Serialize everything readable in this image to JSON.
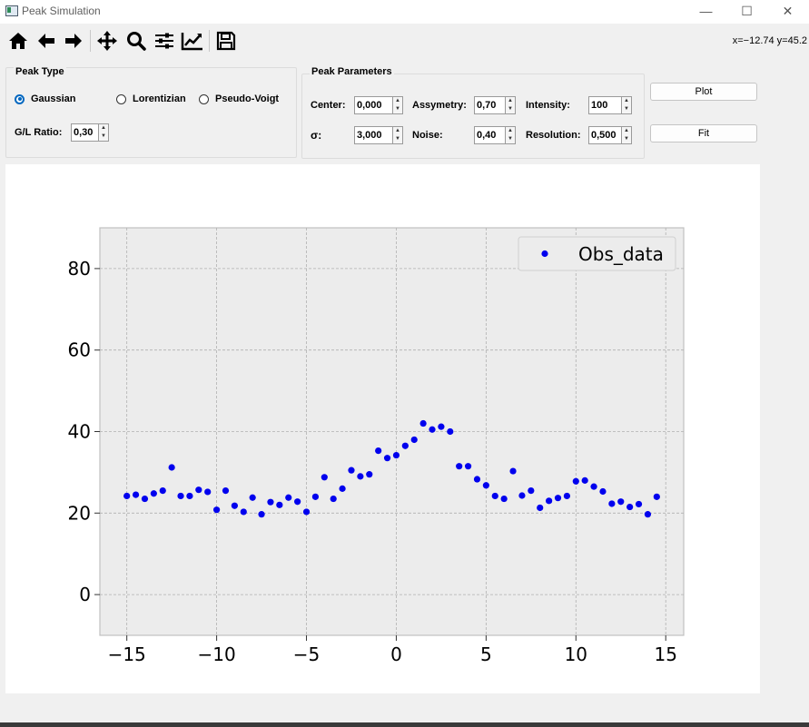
{
  "window": {
    "title": "Peak Simulation",
    "controls": {
      "minimize": "—",
      "maximize": "☐",
      "close": "✕"
    }
  },
  "toolbar": {
    "icons": [
      "home-icon",
      "back-arrow-icon",
      "forward-arrow-icon",
      "pan-icon",
      "zoom-icon",
      "subplots-icon",
      "customize-icon",
      "save-icon"
    ],
    "coords": "x=−12.74 y=45.2"
  },
  "peak_type": {
    "title": "Peak Type",
    "options": [
      {
        "label": "Gaussian",
        "selected": true
      },
      {
        "label": "Lorentizian",
        "selected": false
      },
      {
        "label": "Pseudo-Voigt",
        "selected": false
      }
    ],
    "gl_ratio": {
      "label": "G/L Ratio:",
      "value": "0,30"
    }
  },
  "peak_params": {
    "title": "Peak Parameters",
    "center": {
      "label": "Center:",
      "value": "0,000"
    },
    "asymmetry": {
      "label": "Assymetry:",
      "value": "0,70"
    },
    "intensity": {
      "label": "Intensity:",
      "value": "100"
    },
    "sigma": {
      "label": "σ:",
      "value": "3,000"
    },
    "noise": {
      "label": "Noise:",
      "value": "0,40"
    },
    "resolution": {
      "label": "Resolution:",
      "value": "0,500"
    }
  },
  "buttons": {
    "plot": "Plot",
    "fit": "Fit"
  },
  "colors": {
    "marker": "#0000ee",
    "axes_bg": "#ececec",
    "accent": "#0067c0"
  },
  "chart_data": {
    "type": "scatter",
    "title": "",
    "xlabel": "",
    "ylabel": "",
    "xlim": [
      -16.5,
      16
    ],
    "ylim": [
      -10,
      90
    ],
    "xticks": [
      -15,
      -10,
      -5,
      0,
      5,
      10,
      15
    ],
    "xtick_labels": [
      "−15",
      "−10",
      "−5",
      "0",
      "5",
      "10",
      "15"
    ],
    "yticks": [
      0,
      20,
      40,
      60,
      80
    ],
    "ytick_labels": [
      "0",
      "20",
      "40",
      "60",
      "80"
    ],
    "grid": true,
    "legend": "top-right",
    "series": [
      {
        "name": "Obs_data",
        "x": [
          -15,
          -14.5,
          -14,
          -13.5,
          -13,
          -12.5,
          -12,
          -11.5,
          -11,
          -10.5,
          -10,
          -9.5,
          -9,
          -8.5,
          -8,
          -7.5,
          -7,
          -6.5,
          -6,
          -5.5,
          -5,
          -4.5,
          -4,
          -3.5,
          -3,
          -2.5,
          -2,
          -1.5,
          -1,
          -0.5,
          0,
          0.5,
          1,
          1.5,
          2,
          2.5,
          3,
          3.5,
          4,
          4.5,
          5,
          5.5,
          6,
          6.5,
          7,
          7.5,
          8,
          8.5,
          9,
          9.5,
          10,
          10.5,
          11,
          11.5,
          12,
          12.5,
          13,
          13.5,
          14,
          14.5
        ],
        "y": [
          24.2,
          24.5,
          23.5,
          24.8,
          25.5,
          31.2,
          24.2,
          24.2,
          25.7,
          25.2,
          20.8,
          25.5,
          21.8,
          20.3,
          23.8,
          19.7,
          22.7,
          22.0,
          23.8,
          22.8,
          20.3,
          24.0,
          28.8,
          23.5,
          26.0,
          30.5,
          29.0,
          29.5,
          35.3,
          33.5,
          34.2,
          36.5,
          38.0,
          42.0,
          40.5,
          41.2,
          40.0,
          31.5,
          31.5,
          28.3,
          26.8,
          24.2,
          23.5,
          30.3,
          24.3,
          25.5,
          21.3,
          23.0,
          23.7,
          24.2,
          27.8,
          28.0,
          26.5,
          25.3,
          22.3,
          22.8,
          21.5,
          22.2,
          19.7,
          24.0
        ]
      }
    ]
  }
}
